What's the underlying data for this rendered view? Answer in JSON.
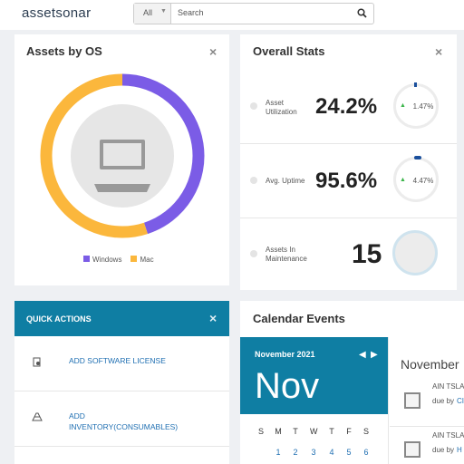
{
  "header": {
    "logo": "assetsonar",
    "filter": "All",
    "search_placeholder": "Search"
  },
  "assets_by_os": {
    "title": "Assets by OS",
    "chart": {
      "type": "pie",
      "categories": [
        "Windows",
        "Mac"
      ],
      "values": [
        45,
        55
      ],
      "colors": [
        "#7b5ce6",
        "#fbb73c"
      ]
    }
  },
  "overall_stats": {
    "title": "Overall Stats",
    "items": [
      {
        "label": "Asset Utilization",
        "value": "24.2%",
        "change": "1.47%"
      },
      {
        "label": "Avg. Uptime",
        "value": "95.6%",
        "change": "4.47%"
      },
      {
        "label": "Assets In Maintenance",
        "value": "15"
      }
    ]
  },
  "quick_actions": {
    "title": "QUICK ACTIONS",
    "items": [
      "ADD SOFTWARE LICENSE",
      "ADD INVENTORY(CONSUMABLES)"
    ]
  },
  "calendar_events": {
    "title": "Calendar Events",
    "month_year": "November 2021",
    "month_short": "Nov",
    "weekdays": [
      "S",
      "M",
      "T",
      "W",
      "T",
      "F",
      "S"
    ],
    "dates": [
      1,
      2,
      3,
      4,
      5,
      6
    ],
    "list_title": "November",
    "events": [
      {
        "name": "AIN TSLA",
        "due": "due by",
        "who": "CI"
      },
      {
        "name": "AIN TSLA",
        "due": "due by",
        "who": "H"
      }
    ]
  }
}
